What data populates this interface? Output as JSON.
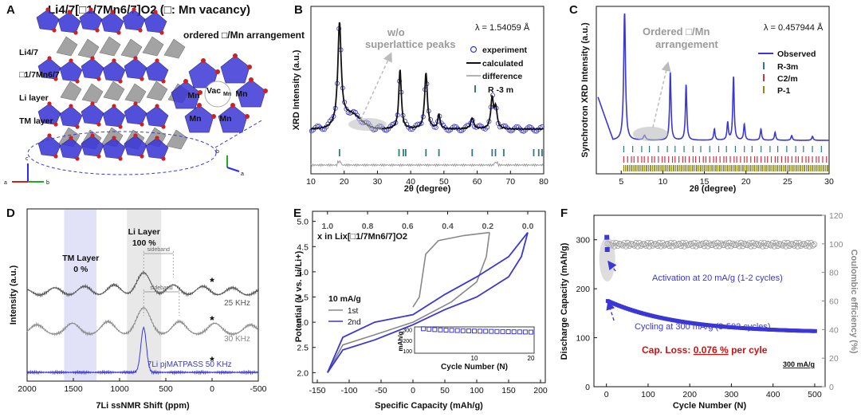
{
  "panel_labels": [
    "A",
    "B",
    "C",
    "D",
    "E",
    "F"
  ],
  "panel_a": {
    "title": "Li4/7[□1/7Mn6/7]O2 (□: Mn vacancy)",
    "subtitle": "ordered □/Mn arrangement",
    "layer_labels": [
      "Li4/7",
      "□1/7Mn6/7",
      "Li layer",
      "TM layer"
    ],
    "cluster_labels": [
      "Mn",
      "Vac_Mn",
      "Mn",
      "Mn",
      "Mn",
      "Mn"
    ],
    "axes_left": [
      "c",
      "a",
      "b"
    ],
    "axes_right": [
      "b",
      "a"
    ],
    "colors": {
      "octahedra": "#3b37d6",
      "oxygen": "#cc2222",
      "li": "#9a9a9a"
    }
  },
  "chart_data": [
    {
      "panel": "B",
      "type": "line",
      "title": "",
      "xlabel": "2θ (degree)",
      "ylabel": "XRD Intensity (a.u.)",
      "xlim": [
        10,
        80
      ],
      "xticks": [
        10,
        20,
        30,
        40,
        50,
        60,
        70,
        80
      ],
      "wavelength": "λ = 1.54059 Å",
      "annotation": "w/o superlattice peaks",
      "peaks_2theta": [
        18.6,
        36.8,
        44.6,
        48.5,
        58.5,
        64.5,
        65.6
      ],
      "legend": [
        "experiment",
        "calculated",
        "difference",
        "R -3 m"
      ],
      "reflections": [
        18.6,
        36.5,
        37.8,
        38.5,
        44.6,
        48.5,
        58.5,
        64.5,
        65.5,
        68.0,
        77.0,
        78.5,
        79.5
      ]
    },
    {
      "panel": "C",
      "type": "line",
      "xlabel": "2θ (degree)",
      "ylabel": "Synchrotron XRD Intensity (a.u.)",
      "xlim": [
        2,
        30
      ],
      "xticks": [
        5,
        10,
        15,
        20,
        25,
        30
      ],
      "wavelength": "λ = 0.457944 Å",
      "annotation": "Ordered □/Mn arrangement",
      "peaks_2theta": [
        5.4,
        7.8,
        10.9,
        12.8,
        16.2,
        17.8,
        18.5,
        19.8,
        21.8,
        23.5,
        25.5,
        28.0
      ],
      "legend": [
        "Observed",
        "R-3m",
        "C2/m",
        "P-1"
      ]
    },
    {
      "panel": "D",
      "type": "line",
      "xlabel": "7Li ssNMR Shift (ppm)",
      "ylabel": "Intensity (a.u.)",
      "xlim": [
        2000,
        -500
      ],
      "xticks": [
        2000,
        1500,
        1000,
        500,
        0,
        -500
      ],
      "series": [
        {
          "name": "25 KHz",
          "center_ppm": 740,
          "sideband_spacing_ppm": 320
        },
        {
          "name": "30 KHz",
          "center_ppm": 740,
          "sideband_spacing_ppm": 385
        },
        {
          "name": "7Li pjMATPASS 50 KHz",
          "center_ppm": 740
        }
      ],
      "regions": [
        {
          "label": "TM Layer",
          "value": "0 %",
          "range_ppm": [
            1600,
            1250
          ]
        },
        {
          "label": "Li Layer",
          "value": "100 %",
          "range_ppm": [
            920,
            550
          ]
        }
      ],
      "sideband_label": "sideband",
      "asterisk": "*"
    },
    {
      "panel": "E",
      "type": "line",
      "xlabel": "Specific Capacity (mAh/g)",
      "ylabel": "Potential (V vs. Li/Li+)",
      "xlim": [
        -150,
        200
      ],
      "ylim": [
        1.8,
        5.2
      ],
      "xticks": [
        -150,
        -100,
        -50,
        0,
        50,
        100,
        150,
        200
      ],
      "yticks": [
        2.0,
        2.5,
        3.0,
        3.5,
        4.0,
        4.5,
        5.0
      ],
      "top_axis": {
        "label": "x in Lix[□1/7Mn6/7]O2",
        "ticks": [
          1.0,
          0.8,
          0.6,
          0.4,
          0.2,
          0.0
        ]
      },
      "rate": "10 mA/g",
      "series": [
        {
          "name": "1st",
          "charge": [
            [
              0,
              3.3
            ],
            [
              10,
              3.5
            ],
            [
              20,
              4.35
            ],
            [
              40,
              4.62
            ],
            [
              80,
              4.72
            ],
            [
              120,
              4.78
            ]
          ],
          "discharge": [
            [
              120,
              4.78
            ],
            [
              115,
              4.3
            ],
            [
              100,
              3.8
            ],
            [
              60,
              3.4
            ],
            [
              0,
              3.0
            ],
            [
              -60,
              2.75
            ],
            [
              -110,
              2.55
            ],
            [
              -134,
              2.0
            ]
          ]
        },
        {
          "name": "2nd",
          "charge": [
            [
              -134,
              2.0
            ],
            [
              -110,
              2.7
            ],
            [
              -60,
              3.0
            ],
            [
              0,
              3.15
            ],
            [
              50,
              3.55
            ],
            [
              100,
              3.9
            ],
            [
              150,
              4.3
            ],
            [
              180,
              4.78
            ]
          ],
          "discharge": [
            [
              180,
              4.78
            ],
            [
              170,
              4.3
            ],
            [
              150,
              3.9
            ],
            [
              100,
              3.5
            ],
            [
              50,
              3.25
            ],
            [
              0,
              2.95
            ],
            [
              -60,
              2.65
            ],
            [
              -110,
              2.45
            ],
            [
              -134,
              2.0
            ]
          ]
        }
      ],
      "inset": {
        "xlabel": "Cycle Number (N)",
        "ylabel": "mAh/g",
        "yticks": [
          300,
          200,
          100
        ],
        "xticks": [
          10,
          20
        ],
        "cycles": [
          1,
          2,
          3,
          4,
          5,
          6,
          7,
          8,
          9,
          10,
          11,
          12,
          13,
          14,
          15,
          16,
          17,
          18,
          19,
          20
        ],
        "capacity": [
          310,
          306,
          302,
          299,
          297,
          295,
          293,
          291,
          290,
          288,
          287,
          286,
          285,
          284,
          283,
          282,
          281,
          280,
          279,
          278
        ]
      }
    },
    {
      "panel": "F",
      "type": "scatter",
      "xlabel": "Cycle Number (N)",
      "ylabel": "Discharge Capacity (mAh/g)",
      "y2label": "Coulombic efficiency (%)",
      "xlim": [
        -30,
        525
      ],
      "ylim": [
        0,
        350
      ],
      "y2lim": [
        0,
        120
      ],
      "xticks": [
        0,
        100,
        200,
        300,
        400,
        500
      ],
      "yticks": [
        0,
        100,
        200,
        300
      ],
      "y2ticks": [
        0,
        20,
        40,
        60,
        80,
        100,
        120
      ],
      "activation": {
        "label": "Activation at 20 mA/g (1-2 cycles)",
        "cycles": [
          1,
          2
        ],
        "capacity": [
          305,
          280
        ]
      },
      "cycling": {
        "label": "Cycling at 300 mA/g (3-502 cycles)",
        "start_capacity": 175,
        "end_capacity": 110
      },
      "efficiency_pct": 99.5,
      "cap_loss": {
        "prefix": "Cap. Loss: ",
        "value": "0.076 %",
        "suffix": " per cyle"
      },
      "rate_label": "300 mA/g"
    }
  ]
}
